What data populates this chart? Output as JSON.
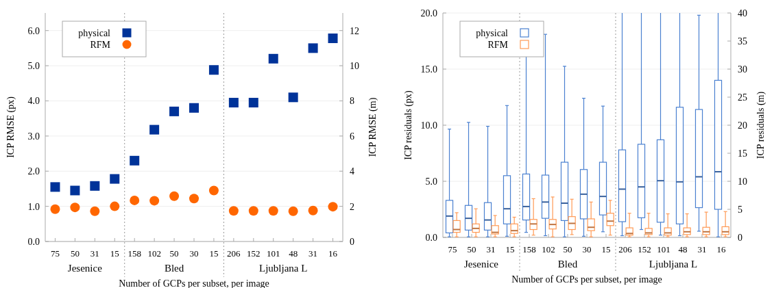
{
  "chart_data": [
    {
      "type": "scatter",
      "xlabel": "Number of GCPs per subset, per image",
      "ylabel": "ICP RMSE (px)",
      "y2label": "ICP RMSE (m)",
      "categories": [
        "75",
        "50",
        "31",
        "15",
        "158",
        "102",
        "50",
        "30",
        "15",
        "206",
        "152",
        "101",
        "48",
        "31",
        "16"
      ],
      "series": [
        {
          "name": "physical",
          "color": "#003399",
          "marker": "square",
          "values": [
            1.55,
            1.45,
            1.58,
            1.78,
            2.3,
            3.18,
            3.7,
            3.8,
            4.88,
            3.95,
            3.95,
            5.2,
            4.1,
            5.5,
            5.78
          ]
        },
        {
          "name": "RFM",
          "color": "#ff6600",
          "marker": "circle",
          "values": [
            0.92,
            0.97,
            0.86,
            1.0,
            1.17,
            1.16,
            1.29,
            1.22,
            1.45,
            0.87,
            0.87,
            0.87,
            0.86,
            0.88,
            0.99
          ]
        }
      ],
      "ylim": [
        0,
        6.5
      ],
      "yticks": [
        {
          "value": 0,
          "label": "0.0"
        },
        {
          "value": 1,
          "label": "1.0"
        },
        {
          "value": 2,
          "label": "2.0"
        },
        {
          "value": 3,
          "label": "3.0"
        },
        {
          "value": 4,
          "label": "4.0"
        },
        {
          "value": 5,
          "label": "5.0"
        },
        {
          "value": 6,
          "label": "6.0"
        }
      ],
      "y2lim": [
        0,
        13
      ],
      "y2ticks": [
        0,
        2,
        4,
        6,
        8,
        10,
        12
      ],
      "annotations": [
        "Jesenice",
        "Bled",
        "Ljubljana L"
      ],
      "grid": "y",
      "legend": "top left"
    },
    {
      "type": "box",
      "xlabel": "Number of GCPs per subset, per image",
      "ylabel": "ICP residuals (px)",
      "y2label": "ICP residuals (m)",
      "categories": [
        "75",
        "50",
        "31",
        "15",
        "158",
        "102",
        "50",
        "30",
        "15",
        "206",
        "152",
        "101",
        "48",
        "31",
        "16"
      ],
      "series": [
        {
          "name": "physical",
          "color": "#4a80d0",
          "boxes": [
            {
              "low": 0.05,
              "q1": 0.4,
              "median": 1.9,
              "q3": 3.3,
              "high": 9.65
            },
            {
              "low": 0.05,
              "q1": 0.65,
              "median": 1.7,
              "q3": 2.85,
              "high": 10.25
            },
            {
              "low": 0.05,
              "q1": 0.65,
              "median": 1.55,
              "q3": 3.1,
              "high": 9.9
            },
            {
              "low": 0.1,
              "q1": 1.2,
              "median": 2.55,
              "q3": 5.5,
              "high": 11.75
            },
            {
              "low": 0.45,
              "q1": 1.55,
              "median": 2.75,
              "q3": 5.65,
              "high": 16.2
            },
            {
              "low": 0.15,
              "q1": 1.7,
              "median": 3.15,
              "q3": 5.55,
              "high": 18.1
            },
            {
              "low": 0.05,
              "q1": 1.5,
              "median": 3.05,
              "q3": 6.7,
              "high": 15.25
            },
            {
              "low": 0.1,
              "q1": 1.65,
              "median": 3.85,
              "q3": 6.05,
              "high": 12.4
            },
            {
              "low": 0.5,
              "q1": 2.0,
              "median": 3.65,
              "q3": 6.7,
              "high": 11.7
            },
            {
              "low": 0.15,
              "q1": 1.4,
              "median": 4.3,
              "q3": 7.8,
              "high": 20
            },
            {
              "low": 0.7,
              "q1": 1.75,
              "median": 4.5,
              "q3": 8.3,
              "high": 20
            },
            {
              "low": 0.2,
              "q1": 1.35,
              "median": 5.05,
              "q3": 8.7,
              "high": 20
            },
            {
              "low": 0.15,
              "q1": 1.2,
              "median": 4.95,
              "q3": 11.6,
              "high": 20
            },
            {
              "low": 0.55,
              "q1": 2.65,
              "median": 5.4,
              "q3": 11.4,
              "high": 19.8
            },
            {
              "low": 0.05,
              "q1": 2.5,
              "median": 5.85,
              "q3": 14.0,
              "high": 20
            }
          ]
        },
        {
          "name": "RFM",
          "color": "#ff9a55",
          "boxes": [
            {
              "low": 0.05,
              "q1": 0.45,
              "median": 0.7,
              "q3": 1.5,
              "high": 2.2
            },
            {
              "low": 0.05,
              "q1": 0.45,
              "median": 0.8,
              "q3": 1.2,
              "high": 2.55
            },
            {
              "low": 0.05,
              "q1": 0.3,
              "median": 0.45,
              "q3": 1.05,
              "high": 1.95
            },
            {
              "low": 0.05,
              "q1": 0.35,
              "median": 0.6,
              "q3": 1.2,
              "high": 1.8
            },
            {
              "low": 0.2,
              "q1": 0.7,
              "median": 1.2,
              "q3": 1.6,
              "high": 3.45
            },
            {
              "low": 0.05,
              "q1": 0.75,
              "median": 1.15,
              "q3": 1.6,
              "high": 3.6
            },
            {
              "low": 0.25,
              "q1": 0.7,
              "median": 1.25,
              "q3": 1.85,
              "high": 3.4
            },
            {
              "low": 0.05,
              "q1": 0.6,
              "median": 0.9,
              "q3": 1.65,
              "high": 3.15
            },
            {
              "low": 0.2,
              "q1": 1.05,
              "median": 1.45,
              "q3": 2.15,
              "high": 3.3
            },
            {
              "low": 0.05,
              "q1": 0.2,
              "median": 0.35,
              "q3": 0.85,
              "high": 2.15
            },
            {
              "low": 0.05,
              "q1": 0.25,
              "median": 0.4,
              "q3": 0.8,
              "high": 2.15
            },
            {
              "low": 0.05,
              "q1": 0.2,
              "median": 0.4,
              "q3": 0.85,
              "high": 2.1
            },
            {
              "low": 0.05,
              "q1": 0.25,
              "median": 0.5,
              "q3": 0.85,
              "high": 2.1
            },
            {
              "low": 0.05,
              "q1": 0.25,
              "median": 0.5,
              "q3": 0.9,
              "high": 2.25
            },
            {
              "low": 0.05,
              "q1": 0.25,
              "median": 0.5,
              "q3": 0.95,
              "high": 2.3
            }
          ]
        }
      ],
      "ylim": [
        0,
        20
      ],
      "yticks": [
        {
          "value": 0,
          "label": "0.0"
        },
        {
          "value": 5,
          "label": "5.0"
        },
        {
          "value": 10,
          "label": "10.0"
        },
        {
          "value": 15,
          "label": "15.0"
        },
        {
          "value": 20,
          "label": "20.0"
        }
      ],
      "y2lim": [
        0,
        40
      ],
      "y2ticks": [
        0,
        5,
        10,
        15,
        20,
        25,
        30,
        35,
        40
      ],
      "annotations": [
        "Jesenice",
        "Bled",
        "Ljubljana L"
      ],
      "grid": "y",
      "legend": "top left"
    }
  ]
}
